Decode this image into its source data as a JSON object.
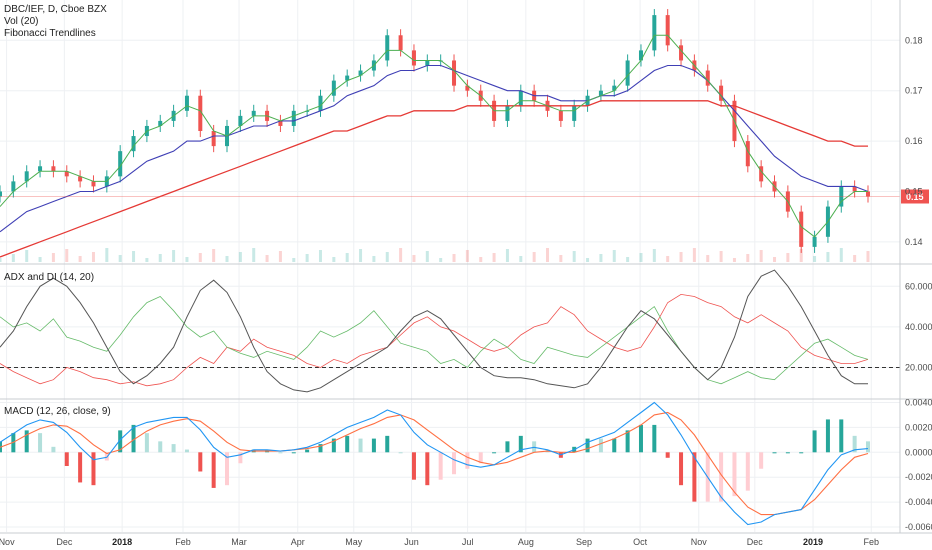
{
  "legend": {
    "symbol": "DBC/IEF, D, Cboe BZX",
    "volume": "Vol (20)",
    "fib": "Fibonacci Trendlines",
    "adx": "ADX and DI (14, 20)",
    "macd": "MACD (12, 26, close, 9)"
  },
  "colors": {
    "up": "#26a69a",
    "down": "#ef5350",
    "ma_fast": "#4caf50",
    "ma_mid": "#3f3fb5",
    "ma_slow": "#e53935",
    "adx": "#555555",
    "di_plus": "#66bb6a",
    "di_minus": "#ef5350",
    "macd_line": "#2196f3",
    "signal_line": "#ff7043",
    "price_badge": "#ef5350"
  },
  "chart_data": [
    {
      "type": "line",
      "panel": "price",
      "y_ticks": [
        "0.18",
        "0.17",
        "0.16",
        "0.15",
        "0.14"
      ],
      "y_tick_values": [
        0.18,
        0.17,
        0.16,
        0.15,
        0.14
      ],
      "ylim": [
        0.136,
        0.188
      ],
      "last_price_label": "0.15",
      "last_price": 0.149,
      "x": [
        0,
        5,
        10,
        15,
        20,
        25,
        30,
        35,
        40,
        45,
        50,
        55,
        60,
        65,
        70,
        75,
        80,
        85,
        90,
        95,
        100,
        105,
        110,
        115,
        120,
        125,
        130,
        135,
        140,
        145,
        150,
        155,
        160,
        165,
        170,
        175,
        180,
        185,
        190,
        195,
        200,
        205,
        210,
        215,
        220,
        225,
        230,
        235,
        240,
        245,
        250,
        255,
        260,
        265,
        270,
        275,
        280,
        285,
        290,
        295,
        300,
        305,
        310,
        315,
        320,
        325
      ],
      "series": [
        {
          "role": "close",
          "values": [
            0.15,
            0.152,
            0.154,
            0.155,
            0.154,
            0.153,
            0.152,
            0.151,
            0.153,
            0.158,
            0.161,
            0.163,
            0.164,
            0.166,
            0.169,
            0.162,
            0.159,
            0.163,
            0.165,
            0.166,
            0.164,
            0.163,
            0.166,
            0.166,
            0.169,
            0.172,
            0.173,
            0.174,
            0.176,
            0.181,
            0.178,
            0.175,
            0.176,
            0.176,
            0.171,
            0.17,
            0.168,
            0.164,
            0.167,
            0.17,
            0.168,
            0.166,
            0.164,
            0.167,
            0.169,
            0.17,
            0.171,
            0.176,
            0.178,
            0.185,
            0.179,
            0.176,
            0.174,
            0.171,
            0.168,
            0.16,
            0.155,
            0.152,
            0.15,
            0.146,
            0.139,
            0.141,
            0.147,
            0.151,
            0.15,
            0.149
          ]
        },
        {
          "role": "ma_fast",
          "values": [
            0.147,
            0.15,
            0.152,
            0.154,
            0.154,
            0.154,
            0.153,
            0.152,
            0.152,
            0.155,
            0.159,
            0.162,
            0.163,
            0.165,
            0.167,
            0.166,
            0.162,
            0.161,
            0.163,
            0.165,
            0.165,
            0.164,
            0.165,
            0.166,
            0.167,
            0.17,
            0.172,
            0.173,
            0.175,
            0.178,
            0.178,
            0.176,
            0.176,
            0.176,
            0.174,
            0.171,
            0.169,
            0.166,
            0.166,
            0.168,
            0.168,
            0.167,
            0.166,
            0.166,
            0.168,
            0.169,
            0.17,
            0.173,
            0.176,
            0.181,
            0.181,
            0.178,
            0.175,
            0.172,
            0.169,
            0.164,
            0.158,
            0.154,
            0.151,
            0.148,
            0.143,
            0.141,
            0.144,
            0.148,
            0.15,
            0.15
          ]
        },
        {
          "role": "ma_mid",
          "values": [
            0.142,
            0.144,
            0.146,
            0.147,
            0.148,
            0.149,
            0.15,
            0.15,
            0.151,
            0.152,
            0.154,
            0.156,
            0.157,
            0.158,
            0.16,
            0.16,
            0.161,
            0.161,
            0.162,
            0.163,
            0.163,
            0.164,
            0.164,
            0.165,
            0.166,
            0.167,
            0.169,
            0.17,
            0.171,
            0.173,
            0.174,
            0.174,
            0.175,
            0.175,
            0.174,
            0.173,
            0.172,
            0.171,
            0.17,
            0.17,
            0.169,
            0.169,
            0.168,
            0.168,
            0.168,
            0.169,
            0.169,
            0.17,
            0.172,
            0.174,
            0.175,
            0.175,
            0.174,
            0.172,
            0.169,
            0.166,
            0.163,
            0.16,
            0.157,
            0.155,
            0.153,
            0.152,
            0.151,
            0.151,
            0.151,
            0.15
          ]
        },
        {
          "role": "ma_slow",
          "values": [
            0.137,
            0.138,
            0.139,
            0.14,
            0.141,
            0.142,
            0.143,
            0.144,
            0.145,
            0.146,
            0.147,
            0.148,
            0.149,
            0.15,
            0.151,
            0.152,
            0.153,
            0.154,
            0.155,
            0.156,
            0.157,
            0.158,
            0.159,
            0.16,
            0.161,
            0.162,
            0.162,
            0.163,
            0.164,
            0.165,
            0.165,
            0.166,
            0.166,
            0.166,
            0.166,
            0.167,
            0.167,
            0.167,
            0.167,
            0.167,
            0.167,
            0.167,
            0.167,
            0.167,
            0.167,
            0.168,
            0.168,
            0.168,
            0.168,
            0.168,
            0.168,
            0.168,
            0.168,
            0.168,
            0.167,
            0.167,
            0.166,
            0.165,
            0.164,
            0.163,
            0.162,
            0.161,
            0.16,
            0.16,
            0.159,
            0.159
          ]
        }
      ]
    },
    {
      "type": "line",
      "panel": "adx",
      "y_ticks": [
        "60.0000",
        "40.0000",
        "20.0000"
      ],
      "y_tick_values": [
        60,
        40,
        20
      ],
      "ylim": [
        5,
        70
      ],
      "threshold": 20,
      "series": [
        {
          "role": "adx",
          "values": [
            30,
            38,
            50,
            60,
            64,
            60,
            52,
            42,
            30,
            18,
            12,
            16,
            22,
            30,
            45,
            58,
            63,
            57,
            45,
            30,
            18,
            12,
            9,
            8,
            10,
            14,
            18,
            22,
            26,
            30,
            38,
            45,
            48,
            44,
            36,
            28,
            20,
            16,
            15,
            15,
            14,
            12,
            11,
            10,
            12,
            20,
            30,
            40,
            48,
            44,
            36,
            28,
            20,
            14,
            20,
            35,
            55,
            65,
            68,
            60,
            50,
            38,
            26,
            16,
            12,
            12
          ]
        },
        {
          "role": "di_plus",
          "values": [
            45,
            40,
            42,
            38,
            44,
            35,
            33,
            30,
            28,
            36,
            45,
            52,
            55,
            48,
            40,
            35,
            38,
            30,
            27,
            25,
            28,
            26,
            24,
            30,
            38,
            35,
            38,
            42,
            48,
            40,
            32,
            30,
            28,
            22,
            24,
            20,
            28,
            34,
            30,
            24,
            22,
            30,
            28,
            26,
            25,
            30,
            35,
            40,
            45,
            50,
            38,
            28,
            20,
            14,
            12,
            15,
            18,
            15,
            14,
            20,
            26,
            32,
            34,
            30,
            26,
            24
          ]
        },
        {
          "role": "di_minus",
          "values": [
            22,
            18,
            15,
            12,
            14,
            20,
            18,
            15,
            14,
            12,
            13,
            11,
            12,
            14,
            20,
            25,
            22,
            30,
            28,
            34,
            30,
            28,
            26,
            22,
            20,
            24,
            22,
            26,
            28,
            30,
            36,
            42,
            45,
            40,
            38,
            34,
            30,
            28,
            30,
            36,
            40,
            42,
            50,
            46,
            38,
            34,
            30,
            28,
            30,
            40,
            52,
            56,
            55,
            52,
            50,
            45,
            42,
            46,
            42,
            38,
            30,
            26,
            24,
            22,
            22,
            24
          ]
        }
      ]
    },
    {
      "type": "bar",
      "panel": "macd",
      "y_ticks": [
        "0.0040",
        "0.0020",
        "0.0000",
        "-0.0020",
        "-0.0040",
        "-0.0060"
      ],
      "y_tick_values": [
        0.004,
        0.002,
        0.0,
        -0.002,
        -0.004,
        -0.006
      ],
      "ylim": [
        -0.0064,
        0.0042
      ],
      "series": [
        {
          "role": "macd",
          "values": [
            0.0008,
            0.0015,
            0.0022,
            0.0026,
            0.0024,
            0.0016,
            0.0004,
            -0.0006,
            -0.0004,
            0.001,
            0.002,
            0.0024,
            0.0026,
            0.0028,
            0.0028,
            0.0018,
            0.0004,
            -0.0004,
            -0.0002,
            0.0002,
            0.0002,
            0.0001,
            0.0002,
            0.0004,
            0.0008,
            0.0014,
            0.002,
            0.0024,
            0.0028,
            0.0034,
            0.003,
            0.0016,
            0.0006,
            0.0,
            -0.0006,
            -0.001,
            -0.0012,
            -0.001,
            -0.0004,
            0.0002,
            0.0004,
            0.0002,
            -0.0002,
            0.0002,
            0.0008,
            0.0012,
            0.0016,
            0.0024,
            0.0032,
            0.004,
            0.003,
            0.0014,
            -0.0004,
            -0.002,
            -0.0036,
            -0.0048,
            -0.0058,
            -0.0056,
            -0.005,
            -0.0048,
            -0.0046,
            -0.003,
            -0.0014,
            -0.0002,
            0.0002,
            0.0003
          ]
        },
        {
          "role": "signal",
          "values": [
            0.0004,
            0.0008,
            0.0014,
            0.0019,
            0.0022,
            0.0021,
            0.0015,
            0.0006,
            -0.0001,
            0.0002,
            0.001,
            0.0017,
            0.0022,
            0.0025,
            0.0027,
            0.0025,
            0.0017,
            0.0008,
            0.0002,
            0.0001,
            0.0001,
            0.0001,
            0.0002,
            0.0003,
            0.0005,
            0.0009,
            0.0014,
            0.0019,
            0.0023,
            0.0028,
            0.003,
            0.0026,
            0.0018,
            0.001,
            0.0002,
            -0.0004,
            -0.0008,
            -0.001,
            -0.0008,
            -0.0004,
            0.0,
            0.0001,
            0.0,
            0.0,
            0.0003,
            0.0007,
            0.0011,
            0.0016,
            0.0022,
            0.003,
            0.0032,
            0.0026,
            0.0014,
            -0.0002,
            -0.0018,
            -0.0032,
            -0.0044,
            -0.005,
            -0.005,
            -0.0048,
            -0.0046,
            -0.0038,
            -0.0026,
            -0.0014,
            -0.0004,
            -0.0001
          ]
        }
      ]
    }
  ],
  "x_axis": [
    {
      "label": "Nov",
      "bold": false,
      "i": 1.5
    },
    {
      "label": "Dec",
      "bold": false,
      "i": 14.7
    },
    {
      "label": "2018",
      "bold": true,
      "i": 27.9
    },
    {
      "label": "Feb",
      "bold": false,
      "i": 41.8
    },
    {
      "label": "Mar",
      "bold": false,
      "i": 54.6
    },
    {
      "label": "Apr",
      "bold": false,
      "i": 68.0
    },
    {
      "label": "May",
      "bold": false,
      "i": 80.8
    },
    {
      "label": "Jun",
      "bold": false,
      "i": 94.0
    },
    {
      "label": "Jul",
      "bold": false,
      "i": 106.8
    },
    {
      "label": "Aug",
      "bold": false,
      "i": 120.1
    },
    {
      "label": "Sep",
      "bold": false,
      "i": 133.4
    },
    {
      "label": "Oct",
      "bold": false,
      "i": 146.2
    },
    {
      "label": "Nov",
      "bold": false,
      "i": 159.6
    },
    {
      "label": "Dec",
      "bold": false,
      "i": 172.4
    },
    {
      "label": "2019",
      "bold": true,
      "i": 185.7
    },
    {
      "label": "Feb",
      "bold": false,
      "i": 199.0
    }
  ]
}
